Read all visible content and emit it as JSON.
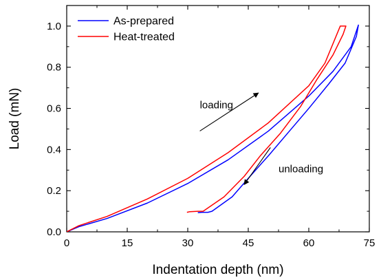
{
  "chart_data": {
    "type": "line",
    "title": "",
    "xlabel": "Indentation depth (nm)",
    "ylabel": "Load (mN)",
    "xlim": [
      0,
      75
    ],
    "ylim": [
      0,
      1.1
    ],
    "xticks": [
      0,
      15,
      30,
      45,
      60,
      75
    ],
    "xtick_labels": [
      "0",
      "15",
      "30",
      "45",
      "60",
      "75"
    ],
    "yticks": [
      0.0,
      0.2,
      0.4,
      0.6,
      0.8,
      1.0
    ],
    "ytick_labels": [
      "0.0",
      "0.2",
      "0.4",
      "0.6",
      "0.8",
      "1.0"
    ],
    "grid": false,
    "legend_position": "top-left",
    "series": [
      {
        "name": "As-prepared",
        "color": "#0000ff",
        "x": [
          0,
          3,
          10,
          20,
          30,
          40,
          50,
          60,
          66,
          70.5,
          72.3,
          72.3,
          71.8,
          69,
          65,
          60,
          55,
          50,
          45,
          41,
          36,
          35,
          33.5,
          32.5
        ],
        "y": [
          0,
          0.025,
          0.065,
          0.14,
          0.235,
          0.35,
          0.49,
          0.66,
          0.78,
          0.9,
          1.005,
          1.005,
          0.95,
          0.82,
          0.72,
          0.6,
          0.485,
          0.37,
          0.26,
          0.17,
          0.1,
          0.095,
          0.095,
          0.093
        ]
      },
      {
        "name": "Heat-treated",
        "color": "#ff0000",
        "x": [
          0,
          3,
          10,
          20,
          30,
          40,
          50,
          60,
          64,
          67.8,
          69.2,
          69.2,
          68.5,
          66,
          62,
          58,
          53,
          48,
          44,
          39,
          33.8,
          32.5,
          30.5,
          29.8
        ],
        "y": [
          0,
          0.03,
          0.075,
          0.16,
          0.26,
          0.385,
          0.53,
          0.71,
          0.82,
          1.0,
          1.0,
          1.0,
          0.96,
          0.86,
          0.74,
          0.61,
          0.48,
          0.37,
          0.27,
          0.17,
          0.1,
          0.1,
          0.098,
          0.095
        ]
      }
    ],
    "annotations": [
      {
        "text": "loading",
        "x": 33,
        "y": 0.6,
        "arrow_from": [
          33,
          0.49
        ],
        "arrow_to": [
          47.5,
          0.675
        ]
      },
      {
        "text": "unloading",
        "x": 52.5,
        "y": 0.29,
        "arrow_from": [
          50.5,
          0.41
        ],
        "arrow_to": [
          44,
          0.23
        ]
      }
    ]
  }
}
